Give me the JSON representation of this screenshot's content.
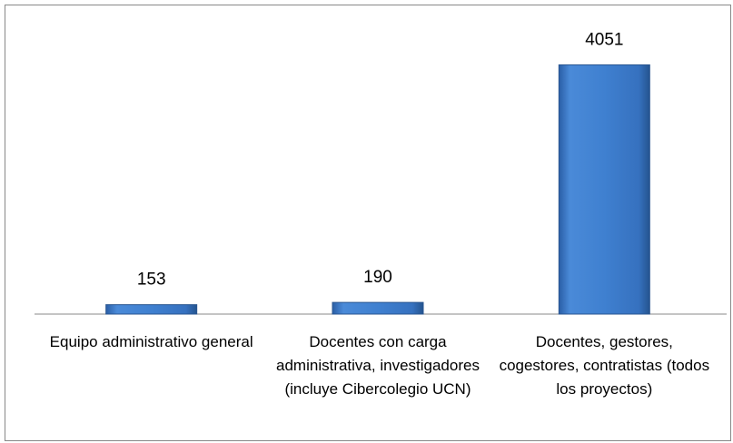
{
  "chart_data": {
    "type": "bar",
    "categories": [
      "Equipo administrativo general",
      "Docentes con carga administrativa, investigadores (incluye Cibercolegio UCN)",
      "Docentes, gestores, cogestores, contratistas (todos los proyectos)"
    ],
    "values": [
      153,
      190,
      4051
    ],
    "color": "#3a78c9",
    "ylim": [
      0,
      4500
    ]
  }
}
